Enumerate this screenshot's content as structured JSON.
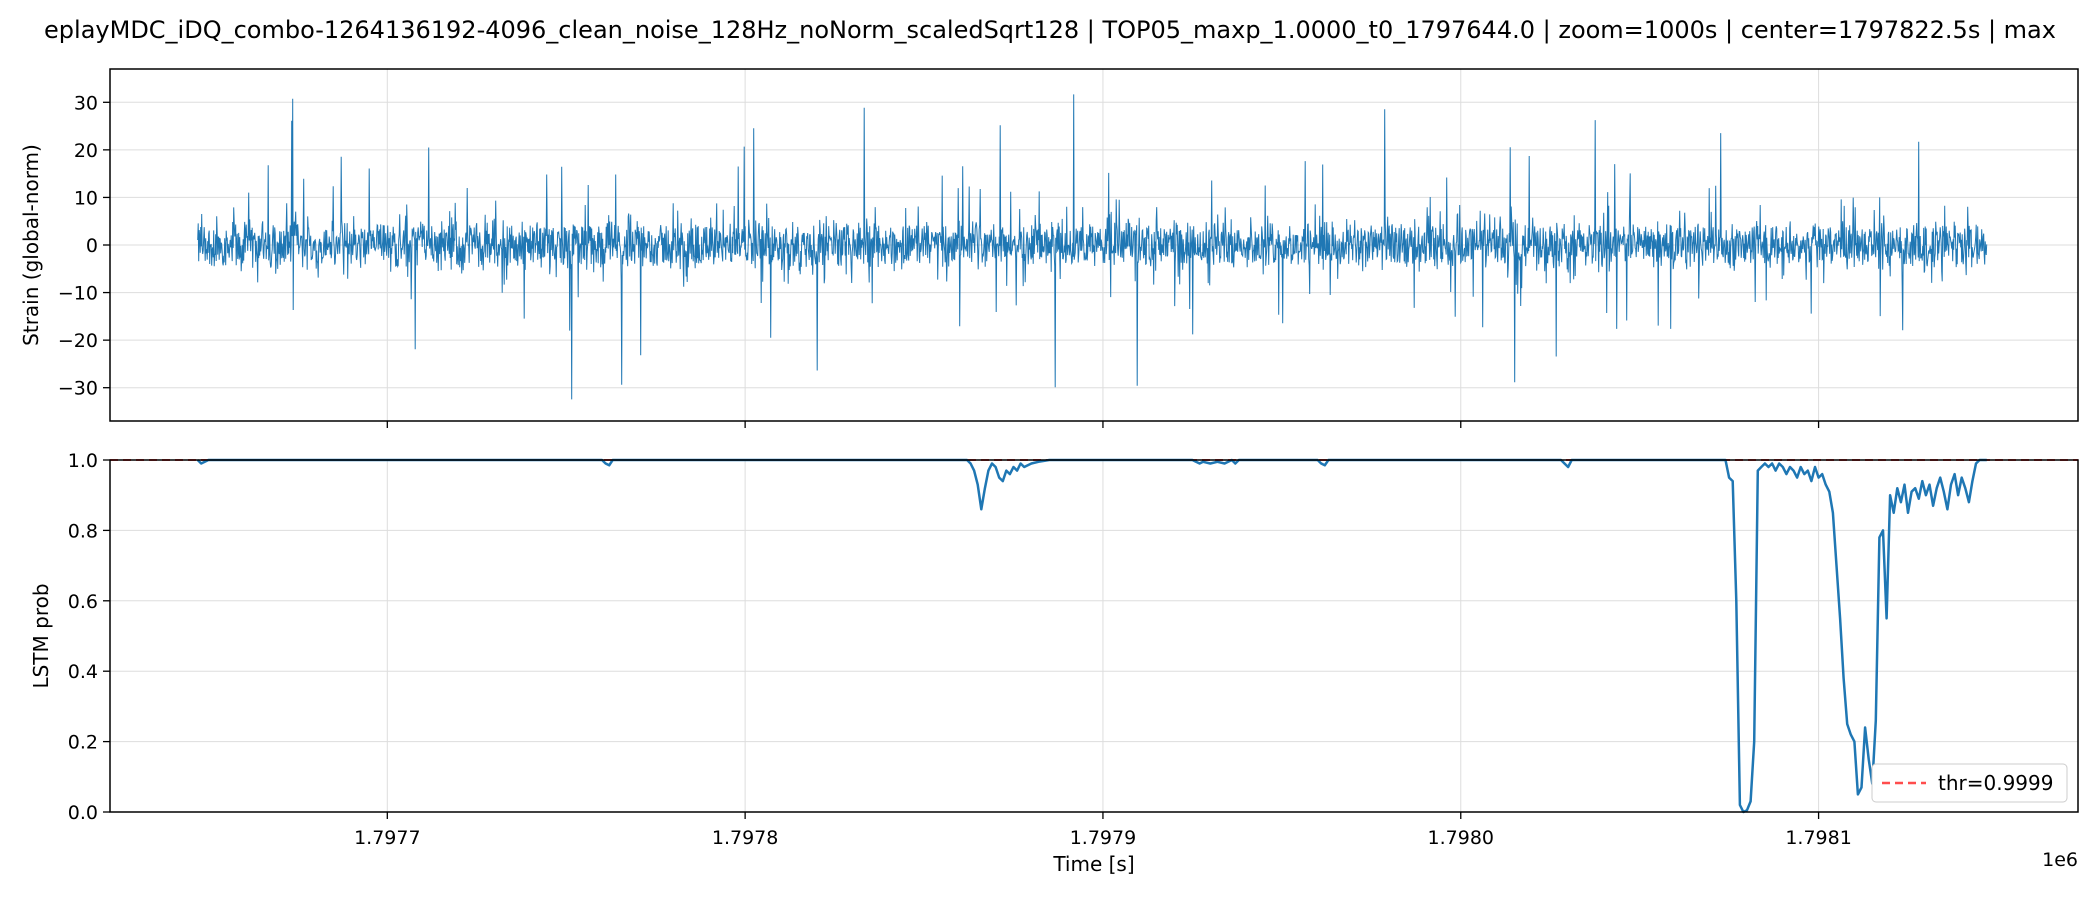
{
  "title": "eplayMDC_iDQ_combo-1264136192-4096_clean_noise_128Hz_noNorm_scaledSqrt128 | TOP05_maxp_1.0000_t0_1797644.0 | zoom=1000s | center=1797822.5s | max",
  "colors": {
    "series": "#1f77b4",
    "threshold": "#ff4d4d",
    "grid": "#dddddd"
  },
  "chart_data": [
    {
      "type": "line",
      "ylabel": "Strain (global-norm)",
      "xlim": [
        1797622.5,
        1798172.5
      ],
      "ylim": [
        -37,
        37
      ],
      "yticks": [
        30,
        20,
        10,
        0,
        -10,
        -20,
        -30
      ],
      "ytick_labels": [
        "30",
        "20",
        "10",
        "0",
        "−10",
        "−20",
        "−30"
      ],
      "xticks": [
        1797700,
        1797800,
        1797900,
        1798000,
        1798100
      ],
      "grid": true,
      "series": [
        {
          "x_range": [
            1797647.0,
            1798147.0
          ],
          "amplitude_core": 4,
          "amplitude_max": 33
        }
      ]
    },
    {
      "type": "line",
      "ylabel": "LSTM prob",
      "xlabel": "Time [s]",
      "x_offset_label": "1e6",
      "xlim": [
        1797622.5,
        1798172.5
      ],
      "ylim": [
        0.0,
        1.0
      ],
      "yticks": [
        1.0,
        0.8,
        0.6,
        0.4,
        0.2,
        0.0
      ],
      "ytick_labels": [
        "1.0",
        "0.8",
        "0.6",
        "0.4",
        "0.2",
        "0.0"
      ],
      "xticks": [
        1797700,
        1797800,
        1797900,
        1798000,
        1798100
      ],
      "xtick_labels": [
        "1.7977",
        "1.7978",
        "1.7979",
        "1.7980",
        "1.7981"
      ],
      "grid": true,
      "threshold": 0.9999,
      "legend": {
        "label": "thr=0.9999",
        "position": "lower-right"
      },
      "series": [
        {
          "x": [
            1797647,
            1797648,
            1797649,
            1797650,
            1797760,
            1797761,
            1797762,
            1797763,
            1797862,
            1797863,
            1797864,
            1797865,
            1797866,
            1797867,
            1797868,
            1797869,
            1797870,
            1797871,
            1797872,
            1797873,
            1797874,
            1797875,
            1797876,
            1797877,
            1797878,
            1797880,
            1797882,
            1797885,
            1797890,
            1797925,
            1797926,
            1797927,
            1797928,
            1797930,
            1797932,
            1797934,
            1797936,
            1797937,
            1797938,
            1797960,
            1797961,
            1797962,
            1797963,
            1798028,
            1798029,
            1798030,
            1798031,
            1798074,
            1798075,
            1798076,
            1798077,
            1798078,
            1798079,
            1798080,
            1798081,
            1798082,
            1798083,
            1798084,
            1798085,
            1798086,
            1798087,
            1798088,
            1798089,
            1798090,
            1798091,
            1798092,
            1798093,
            1798094,
            1798095,
            1798096,
            1798097,
            1798098,
            1798099,
            1798100,
            1798101,
            1798102,
            1798103,
            1798104,
            1798105,
            1798106,
            1798107,
            1798108,
            1798109,
            1798110,
            1798111,
            1798112,
            1798113,
            1798114,
            1798115,
            1798116,
            1798117,
            1798118,
            1798119,
            1798120,
            1798121,
            1798122,
            1798123,
            1798124,
            1798125,
            1798126,
            1798127,
            1798128,
            1798129,
            1798130,
            1798131,
            1798132,
            1798133,
            1798134,
            1798135,
            1798136,
            1798137,
            1798138,
            1798139,
            1798140,
            1798141,
            1798142,
            1798143,
            1798144,
            1798145,
            1798146,
            1798147
          ],
          "y": [
            1.0,
            0.99,
            0.995,
            1.0,
            1.0,
            0.99,
            0.985,
            1.0,
            1.0,
            0.99,
            0.97,
            0.93,
            0.86,
            0.92,
            0.97,
            0.99,
            0.98,
            0.95,
            0.94,
            0.97,
            0.96,
            0.98,
            0.97,
            0.99,
            0.98,
            0.99,
            0.995,
            1.0,
            1.0,
            1.0,
            0.995,
            0.99,
            0.995,
            0.99,
            0.995,
            0.99,
            1.0,
            0.99,
            1.0,
            1.0,
            0.99,
            0.985,
            1.0,
            1.0,
            0.99,
            0.98,
            1.0,
            1.0,
            0.95,
            0.94,
            0.6,
            0.02,
            0.0,
            0.005,
            0.03,
            0.2,
            0.97,
            0.98,
            0.99,
            0.98,
            0.99,
            0.97,
            0.99,
            0.98,
            0.96,
            0.98,
            0.97,
            0.95,
            0.98,
            0.96,
            0.97,
            0.94,
            0.98,
            0.95,
            0.96,
            0.93,
            0.91,
            0.85,
            0.7,
            0.55,
            0.38,
            0.25,
            0.22,
            0.2,
            0.05,
            0.07,
            0.24,
            0.15,
            0.08,
            0.26,
            0.78,
            0.8,
            0.55,
            0.9,
            0.85,
            0.92,
            0.88,
            0.93,
            0.85,
            0.91,
            0.92,
            0.89,
            0.94,
            0.9,
            0.93,
            0.87,
            0.92,
            0.95,
            0.91,
            0.86,
            0.93,
            0.96,
            0.9,
            0.95,
            0.92,
            0.88,
            0.94,
            0.99,
            1.0,
            1.0,
            1.0
          ]
        }
      ]
    }
  ]
}
